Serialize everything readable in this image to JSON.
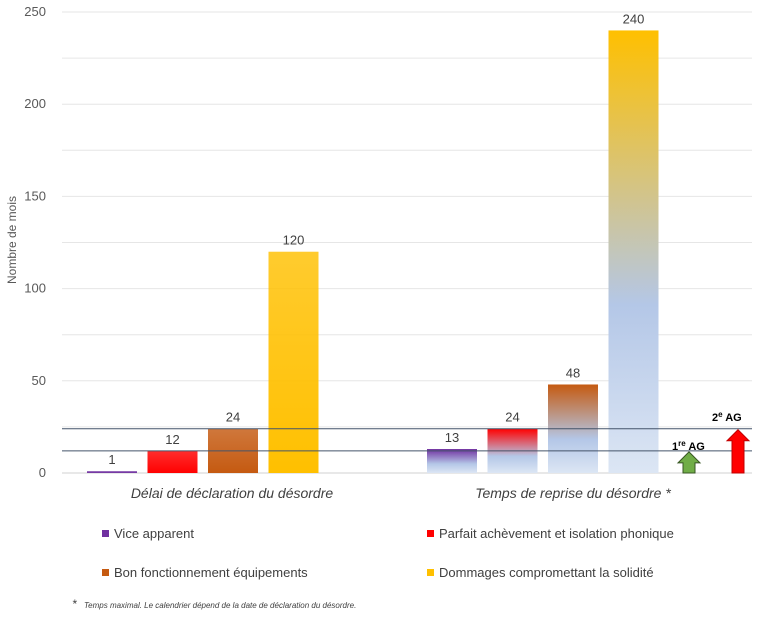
{
  "chart_data": {
    "type": "bar",
    "ylabel": "Nombre  de mois",
    "ylim": [
      0,
      250
    ],
    "yticks": [
      0,
      50,
      100,
      150,
      200,
      250
    ],
    "grid": true,
    "categories": [
      "Délai de déclaration du désordre",
      "Temps de reprise du désordre *"
    ],
    "series": [
      {
        "name": "Vice apparent",
        "values": [
          1,
          13
        ],
        "color": "#7030A0"
      },
      {
        "name": "Parfait achèvement et isolation phonique",
        "values": [
          12,
          24
        ],
        "color": "#FF0000"
      },
      {
        "name": "Bon fonctionnement équipements",
        "values": [
          24,
          48
        ],
        "color": "#C55A11"
      },
      {
        "name": "Dommages compromettant la solidité",
        "values": [
          120,
          240
        ],
        "color": "#FFC000"
      }
    ],
    "gradient_fade_color": "#B4C7E7",
    "reference_lines": [
      {
        "value": 12,
        "color": "#44546A"
      },
      {
        "value": 24,
        "color": "#44546A"
      }
    ],
    "annotations": [
      {
        "label_main": "1",
        "label_sup": "re",
        "label_rest": " AG",
        "value": 12,
        "color": "#70AD47",
        "border": "#375623"
      },
      {
        "label_main": "2",
        "label_sup": "e",
        "label_rest": " AG",
        "value": 24,
        "color": "#FF0000",
        "border": "#C00000"
      }
    ],
    "legend_position": "bottom",
    "footnote_marker": "*",
    "footnote": "Temps maximal. Le calendrier dépend de la date de déclaration du désordre."
  }
}
